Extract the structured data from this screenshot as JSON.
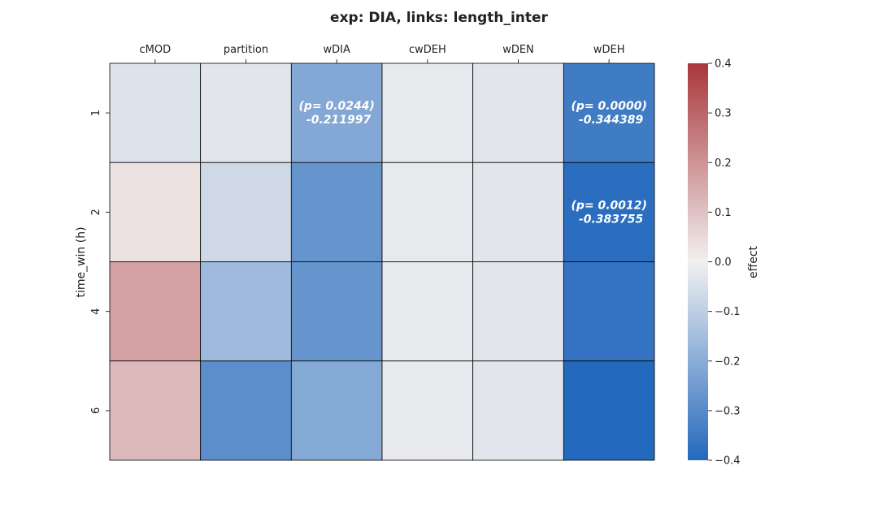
{
  "chart_data": {
    "type": "heatmap",
    "title": "exp: DIA, links: length_inter",
    "xlabel": "",
    "ylabel": "time_win (h)",
    "x_categories": [
      "cMOD",
      "partition",
      "wDIA",
      "cwDEH",
      "wDEN",
      "wDEH"
    ],
    "y_categories": [
      "1",
      "2",
      "4",
      "6"
    ],
    "x_tick_position": "top",
    "values": [
      [
        -0.04,
        -0.03,
        -0.211997,
        -0.02,
        -0.03,
        -0.344389
      ],
      [
        0.03,
        -0.07,
        -0.27,
        -0.02,
        -0.03,
        -0.383755
      ],
      [
        0.17,
        -0.16,
        -0.27,
        -0.02,
        -0.03,
        -0.37
      ],
      [
        0.12,
        -0.29,
        -0.21,
        -0.02,
        -0.03,
        -0.4
      ]
    ],
    "annotations": [
      {
        "row": 0,
        "col": 2,
        "lines": [
          "(p= 0.0244)",
          "-0.211997"
        ]
      },
      {
        "row": 0,
        "col": 5,
        "lines": [
          "(p= 0.0000)",
          "-0.344389"
        ]
      },
      {
        "row": 1,
        "col": 5,
        "lines": [
          "(p= 0.0012)",
          "-0.383755"
        ]
      }
    ],
    "colorbar": {
      "label": "effect",
      "vmin": -0.4,
      "vmax": 0.4,
      "ticks": [
        "0.4",
        "0.3",
        "0.2",
        "0.1",
        "0.0",
        "−0.1",
        "−0.2",
        "−0.3",
        "−0.4"
      ],
      "colormap": "vlag",
      "colors": {
        "low": "#2369bd",
        "mid": "#f2f0f0",
        "high": "#a9373b"
      }
    },
    "grid": false
  }
}
